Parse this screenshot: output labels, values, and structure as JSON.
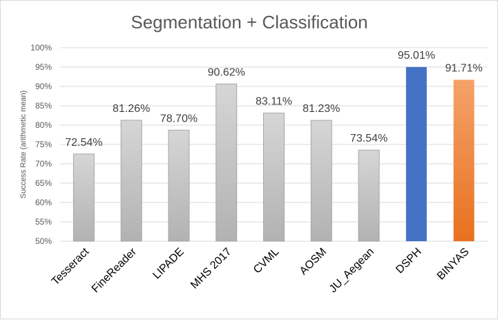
{
  "chart_data": {
    "type": "bar",
    "title": "Segmentation + Classification",
    "xlabel": "",
    "ylabel": "Success Rate (arithmetic mean)",
    "ylim": [
      50,
      100
    ],
    "y_ticks": [
      50,
      55,
      60,
      65,
      70,
      75,
      80,
      85,
      90,
      95,
      100
    ],
    "y_tick_labels": [
      "50%",
      "55%",
      "60%",
      "65%",
      "70%",
      "75%",
      "80%",
      "85%",
      "90%",
      "95%",
      "100%"
    ],
    "grid": true,
    "legend": "none",
    "categories": [
      "Tesseract",
      "FineReader",
      "LIPADE",
      "MHS 2017",
      "CVML",
      "AOSM",
      "JU_Aegean",
      "DSPH",
      "BINYAS"
    ],
    "values": [
      72.54,
      81.26,
      78.7,
      90.62,
      83.11,
      81.23,
      73.54,
      95.01,
      91.71
    ],
    "data_labels": [
      "72.54%",
      "81.26%",
      "78.70%",
      "90.62%",
      "83.11%",
      "81.23%",
      "73.54%",
      "95.01%",
      "91.71%"
    ],
    "bar_colors": [
      "#c3c3c3",
      "#c3c3c3",
      "#c3c3c3",
      "#c3c3c3",
      "#c3c3c3",
      "#c3c3c3",
      "#c3c3c3",
      "#4472c4",
      "#ed7d31"
    ]
  }
}
